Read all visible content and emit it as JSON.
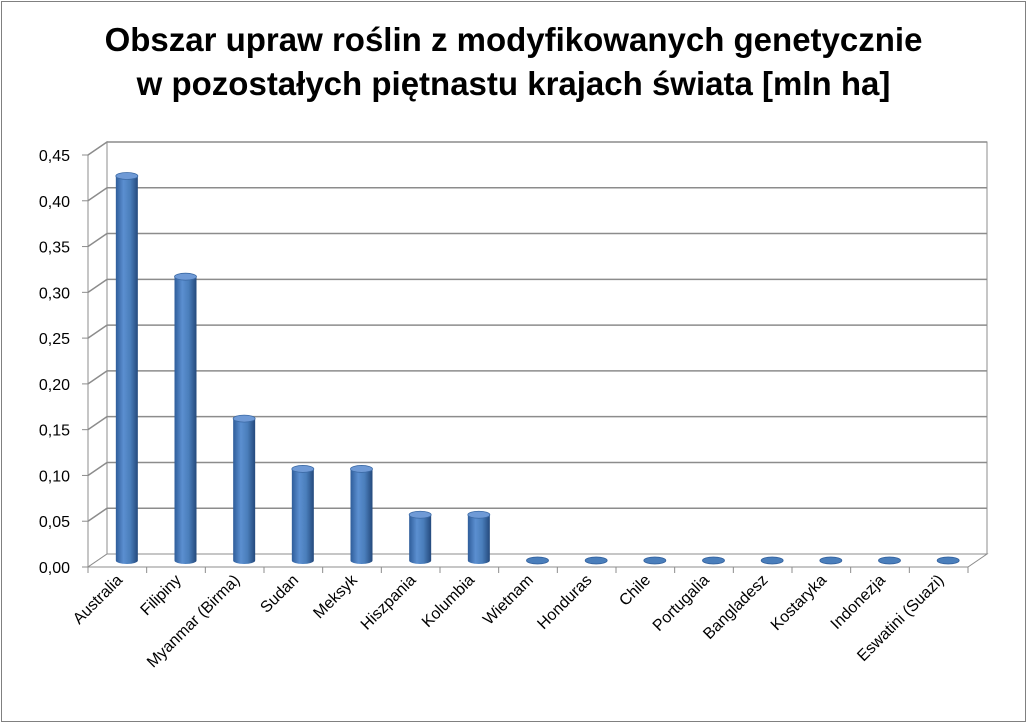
{
  "chart_data": {
    "type": "bar",
    "title_lines": [
      "Obszar upraw roślin z modyfikowanych genetycznie",
      "w pozostałych piętnastu krajach świata [mln ha]"
    ],
    "categories": [
      "Australia",
      "Filipiny",
      "Myanmar (Birma)",
      "Sudan",
      "Meksyk",
      "Hiszpania",
      "Kolumbia",
      "Wietnam",
      "Honduras",
      "Chile",
      "Portugalia",
      "Bangladesz",
      "Kostaryka",
      "Indonezja",
      "Eswatini (Suazi)"
    ],
    "values": [
      0.42,
      0.31,
      0.155,
      0.1,
      0.1,
      0.05,
      0.05,
      0.0,
      0.0,
      0.0,
      0.0,
      0.0,
      0.0,
      0.0,
      0.0
    ],
    "yticks": [
      "0,00",
      "0,05",
      "0,10",
      "0,15",
      "0,20",
      "0,25",
      "0,30",
      "0,35",
      "0,40",
      "0,45"
    ],
    "ylim": [
      0,
      0.45
    ],
    "grid": true,
    "legend": "none",
    "bar_color": "#4a7ebb",
    "bar_top_color": "#6f9ad6"
  }
}
